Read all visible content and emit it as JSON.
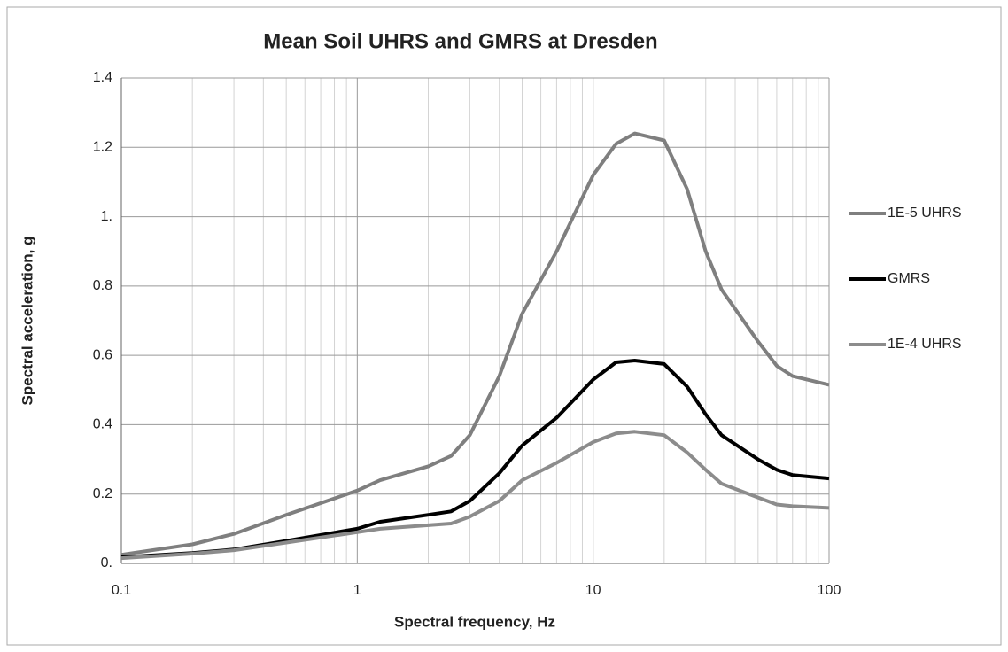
{
  "chart_data": {
    "type": "line",
    "title": "Mean Soil UHRS and GMRS at Dresden",
    "x_label": "Spectral frequency, Hz",
    "y_label": "Spectral acceleration, g",
    "x": [
      0.1,
      0.2,
      0.3,
      0.5,
      1,
      1.25,
      2,
      2.5,
      3,
      4,
      5,
      7,
      10,
      12.5,
      15,
      20,
      25,
      30,
      35,
      50,
      60,
      70,
      100
    ],
    "series": [
      {
        "name": "1E-5 UHRS",
        "color": "#7f7f7f",
        "values": [
          0.025,
          0.055,
          0.085,
          0.14,
          0.21,
          0.24,
          0.28,
          0.31,
          0.37,
          0.54,
          0.72,
          0.9,
          1.12,
          1.21,
          1.24,
          1.22,
          1.08,
          0.9,
          0.79,
          0.64,
          0.57,
          0.54,
          0.515
        ]
      },
      {
        "name": "GMRS",
        "color": "#000000",
        "values": [
          0.018,
          0.03,
          0.04,
          0.065,
          0.1,
          0.12,
          0.14,
          0.15,
          0.18,
          0.26,
          0.34,
          0.42,
          0.53,
          0.58,
          0.585,
          0.575,
          0.51,
          0.43,
          0.37,
          0.3,
          0.27,
          0.255,
          0.245
        ]
      },
      {
        "name": "1E-4 UHRS",
        "color": "#8c8c8c",
        "values": [
          0.015,
          0.028,
          0.038,
          0.06,
          0.09,
          0.1,
          0.11,
          0.115,
          0.135,
          0.18,
          0.24,
          0.29,
          0.35,
          0.375,
          0.38,
          0.37,
          0.32,
          0.27,
          0.23,
          0.19,
          0.17,
          0.165,
          0.16
        ]
      }
    ],
    "xscale": "log",
    "xlim": [
      0.1,
      100
    ],
    "xticks": [
      0.1,
      1,
      10,
      100
    ],
    "ylim": [
      0,
      1.4
    ],
    "yticks": [
      {
        "value": 0,
        "label": "0."
      },
      0.2,
      0.4,
      0.6,
      0.8,
      {
        "value": 1,
        "label": "1."
      },
      1.2,
      1.4
    ],
    "grid": true,
    "legend": "right"
  }
}
